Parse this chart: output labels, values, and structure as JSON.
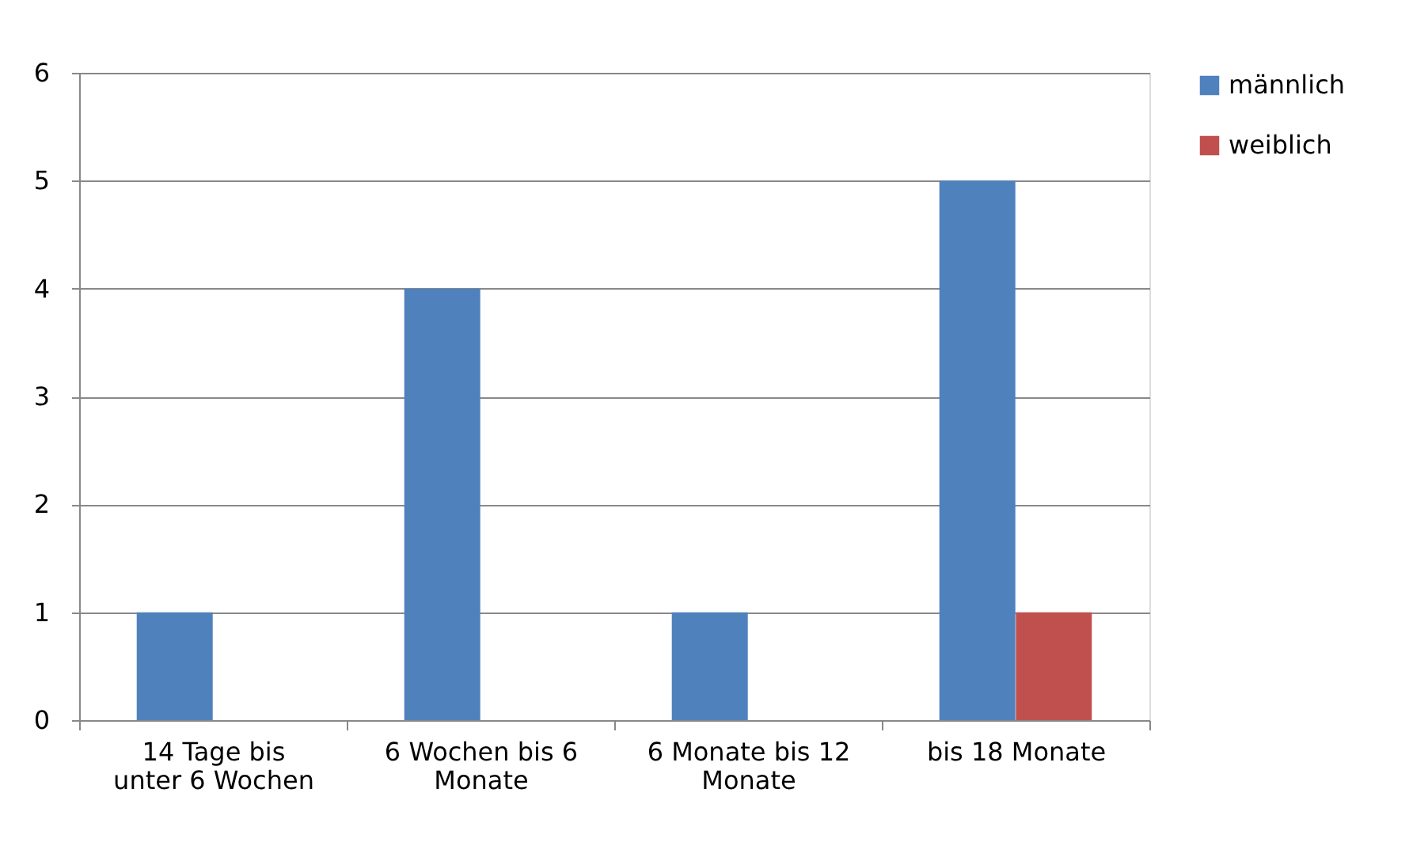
{
  "chart_data": {
    "type": "bar",
    "categories": [
      "14 Tage bis unter 6 Wochen",
      "6 Wochen bis 6 Monate",
      "6 Monate bis 12 Monate",
      "bis 18 Monate"
    ],
    "series": [
      {
        "name": "männlich",
        "color": "#4f81bd",
        "values": [
          1,
          4,
          1,
          5
        ]
      },
      {
        "name": "weiblich",
        "color": "#c0504d",
        "values": [
          0,
          0,
          0,
          1
        ]
      }
    ],
    "ylim": [
      0,
      6
    ],
    "yticks": [
      0,
      1,
      2,
      3,
      4,
      5,
      6
    ],
    "grid": "y",
    "legend": "right"
  }
}
